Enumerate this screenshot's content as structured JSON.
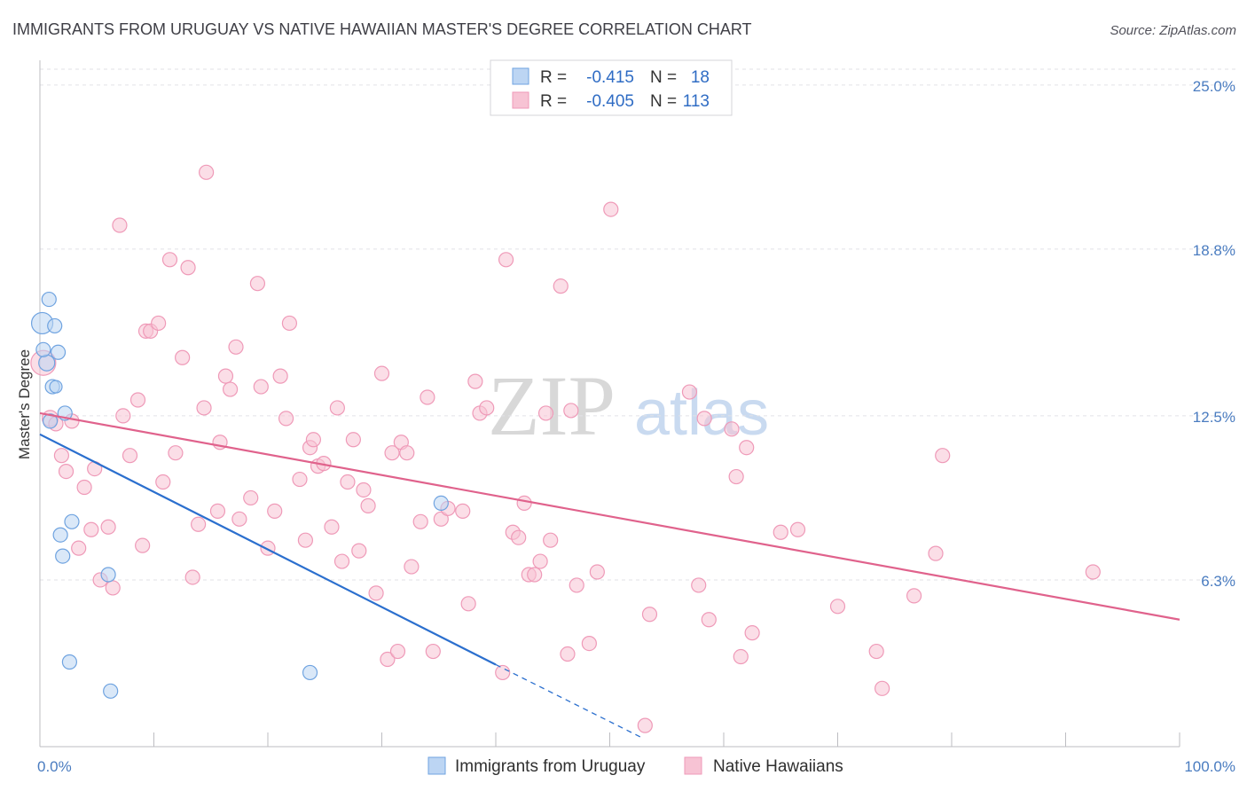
{
  "chart_data": {
    "type": "scatter",
    "title": "IMMIGRANTS FROM URUGUAY VS NATIVE HAWAIIAN MASTER'S DEGREE CORRELATION CHART",
    "source": "Source: ZipAtlas.com",
    "xlabel": "",
    "ylabel": "Master's Degree",
    "xlim": [
      0,
      100
    ],
    "ylim": [
      0,
      26.2
    ],
    "x_ticks": [
      {
        "value": 0,
        "label": "0.0%"
      },
      {
        "value": 100,
        "label": "100.0%"
      }
    ],
    "y_ticks": [
      {
        "value": 6.3,
        "label": "6.3%"
      },
      {
        "value": 12.5,
        "label": "12.5%"
      },
      {
        "value": 18.8,
        "label": "18.8%"
      },
      {
        "value": 25.0,
        "label": "25.0%"
      }
    ],
    "grid": true,
    "watermark": {
      "zip": "ZIP",
      "atlas": "atlas"
    },
    "legend_position": "bottom-center",
    "stats_box": {
      "rows": [
        {
          "r_label": "R =",
          "r_value": "-0.415",
          "n_label": "N =",
          "n_value": "18"
        },
        {
          "r_label": "R =",
          "r_value": "-0.405",
          "n_label": "N =",
          "n_value": "113"
        }
      ]
    },
    "series": [
      {
        "name": "Immigrants from Uruguay",
        "color": "#6fa3e0",
        "fill": "#bcd5f3",
        "line_color": "#2b6fce",
        "trend": {
          "x0": 0,
          "y0": 11.8,
          "x1": 40,
          "y1": 3.1,
          "dash_to_x": 53,
          "dash_to_y": 0.3
        },
        "points": [
          [
            0.2,
            16.0,
            12
          ],
          [
            0.8,
            16.9,
            8
          ],
          [
            1.3,
            15.9,
            8
          ],
          [
            1.6,
            14.9,
            8
          ],
          [
            0.6,
            14.5,
            9
          ],
          [
            1.1,
            13.6,
            8
          ],
          [
            1.4,
            13.6,
            7
          ],
          [
            2.2,
            12.6,
            8
          ],
          [
            0.9,
            12.3,
            8
          ],
          [
            2.8,
            8.5,
            8
          ],
          [
            1.8,
            8.0,
            8
          ],
          [
            2.0,
            7.2,
            8
          ],
          [
            6.0,
            6.5,
            8
          ],
          [
            2.6,
            3.2,
            8
          ],
          [
            6.2,
            2.1,
            8
          ],
          [
            23.7,
            2.8,
            8
          ],
          [
            35.2,
            9.2,
            8
          ],
          [
            0.3,
            15.0,
            8
          ]
        ]
      },
      {
        "name": "Native Hawaiians",
        "color": "#ef9ab8",
        "fill": "#f7c3d4",
        "line_color": "#e0628c",
        "trend": {
          "x0": 0,
          "y0": 12.6,
          "x1": 100,
          "y1": 4.8
        },
        "points": [
          [
            0.3,
            14.5,
            14
          ],
          [
            0.9,
            12.4,
            9
          ],
          [
            1.4,
            12.2,
            8
          ],
          [
            2.8,
            12.3,
            8
          ],
          [
            1.9,
            11.0,
            8
          ],
          [
            2.3,
            10.4,
            8
          ],
          [
            3.9,
            9.8,
            8
          ],
          [
            4.8,
            10.5,
            8
          ],
          [
            6.0,
            8.3,
            8
          ],
          [
            4.5,
            8.2,
            8
          ],
          [
            3.4,
            7.5,
            8
          ],
          [
            5.3,
            6.3,
            8
          ],
          [
            6.4,
            6.0,
            8
          ],
          [
            7.0,
            19.7,
            8
          ],
          [
            7.3,
            12.5,
            8
          ],
          [
            7.9,
            11.0,
            8
          ],
          [
            8.6,
            13.1,
            8
          ],
          [
            9.0,
            7.6,
            8
          ],
          [
            9.3,
            15.7,
            8
          ],
          [
            9.7,
            15.7,
            8
          ],
          [
            10.4,
            16.0,
            8
          ],
          [
            10.8,
            10.0,
            8
          ],
          [
            11.4,
            18.4,
            8
          ],
          [
            11.9,
            11.1,
            8
          ],
          [
            12.5,
            14.7,
            8
          ],
          [
            13.0,
            18.1,
            8
          ],
          [
            13.4,
            6.4,
            8
          ],
          [
            13.9,
            8.4,
            8
          ],
          [
            14.4,
            12.8,
            8
          ],
          [
            14.6,
            21.7,
            8
          ],
          [
            15.6,
            8.9,
            8
          ],
          [
            15.8,
            11.5,
            8
          ],
          [
            16.3,
            14.0,
            8
          ],
          [
            16.7,
            13.5,
            8
          ],
          [
            17.2,
            15.1,
            8
          ],
          [
            17.5,
            8.6,
            8
          ],
          [
            18.5,
            9.4,
            8
          ],
          [
            19.1,
            17.5,
            8
          ],
          [
            19.4,
            13.6,
            8
          ],
          [
            20.0,
            7.5,
            8
          ],
          [
            20.6,
            8.9,
            8
          ],
          [
            21.1,
            14.0,
            8
          ],
          [
            21.6,
            12.4,
            8
          ],
          [
            21.9,
            16.0,
            8
          ],
          [
            22.8,
            10.1,
            8
          ],
          [
            23.3,
            7.8,
            8
          ],
          [
            23.7,
            11.3,
            8
          ],
          [
            24.0,
            11.6,
            8
          ],
          [
            24.4,
            10.6,
            8
          ],
          [
            24.9,
            10.7,
            8
          ],
          [
            25.6,
            8.3,
            8
          ],
          [
            26.1,
            12.8,
            8
          ],
          [
            26.5,
            7.0,
            8
          ],
          [
            27.0,
            10.0,
            8
          ],
          [
            27.5,
            11.6,
            8
          ],
          [
            28.0,
            7.4,
            8
          ],
          [
            28.4,
            9.7,
            8
          ],
          [
            28.8,
            9.1,
            8
          ],
          [
            29.5,
            5.8,
            8
          ],
          [
            30.0,
            14.1,
            8
          ],
          [
            30.5,
            3.3,
            8
          ],
          [
            30.9,
            11.1,
            8
          ],
          [
            31.4,
            3.6,
            8
          ],
          [
            31.7,
            11.5,
            8
          ],
          [
            32.2,
            11.1,
            8
          ],
          [
            32.6,
            6.8,
            8
          ],
          [
            33.4,
            8.5,
            8
          ],
          [
            34.0,
            13.2,
            8
          ],
          [
            34.5,
            3.6,
            8
          ],
          [
            35.2,
            8.6,
            8
          ],
          [
            35.8,
            9.0,
            8
          ],
          [
            37.1,
            8.9,
            8
          ],
          [
            37.6,
            5.4,
            8
          ],
          [
            38.2,
            13.8,
            8
          ],
          [
            38.6,
            12.6,
            8
          ],
          [
            39.2,
            12.8,
            8
          ],
          [
            40.6,
            2.8,
            8
          ],
          [
            40.9,
            18.4,
            8
          ],
          [
            41.5,
            8.1,
            8
          ],
          [
            42.0,
            7.9,
            8
          ],
          [
            42.5,
            9.2,
            8
          ],
          [
            42.9,
            6.5,
            8
          ],
          [
            43.4,
            6.5,
            8
          ],
          [
            43.9,
            7.0,
            8
          ],
          [
            44.4,
            12.6,
            8
          ],
          [
            44.8,
            7.8,
            8
          ],
          [
            45.7,
            17.4,
            8
          ],
          [
            46.3,
            3.5,
            8
          ],
          [
            47.1,
            6.1,
            8
          ],
          [
            48.2,
            3.9,
            8
          ],
          [
            48.9,
            6.6,
            8
          ],
          [
            50.1,
            20.3,
            8
          ],
          [
            53.1,
            0.8,
            8
          ],
          [
            53.5,
            5.0,
            8
          ],
          [
            57.0,
            13.4,
            8
          ],
          [
            57.8,
            6.1,
            8
          ],
          [
            58.3,
            12.4,
            8
          ],
          [
            58.7,
            4.8,
            8
          ],
          [
            60.7,
            12.0,
            8
          ],
          [
            61.1,
            10.2,
            8
          ],
          [
            61.5,
            3.4,
            8
          ],
          [
            62.0,
            11.3,
            8
          ],
          [
            62.5,
            4.3,
            8
          ],
          [
            65.0,
            8.1,
            8
          ],
          [
            66.5,
            8.2,
            8
          ],
          [
            70.0,
            5.3,
            8
          ],
          [
            73.4,
            3.6,
            8
          ],
          [
            73.9,
            2.2,
            8
          ],
          [
            76.7,
            5.7,
            8
          ],
          [
            78.6,
            7.3,
            8
          ],
          [
            79.2,
            11.0,
            8
          ],
          [
            92.4,
            6.6,
            8
          ],
          [
            46.6,
            12.7,
            8
          ]
        ]
      }
    ]
  }
}
